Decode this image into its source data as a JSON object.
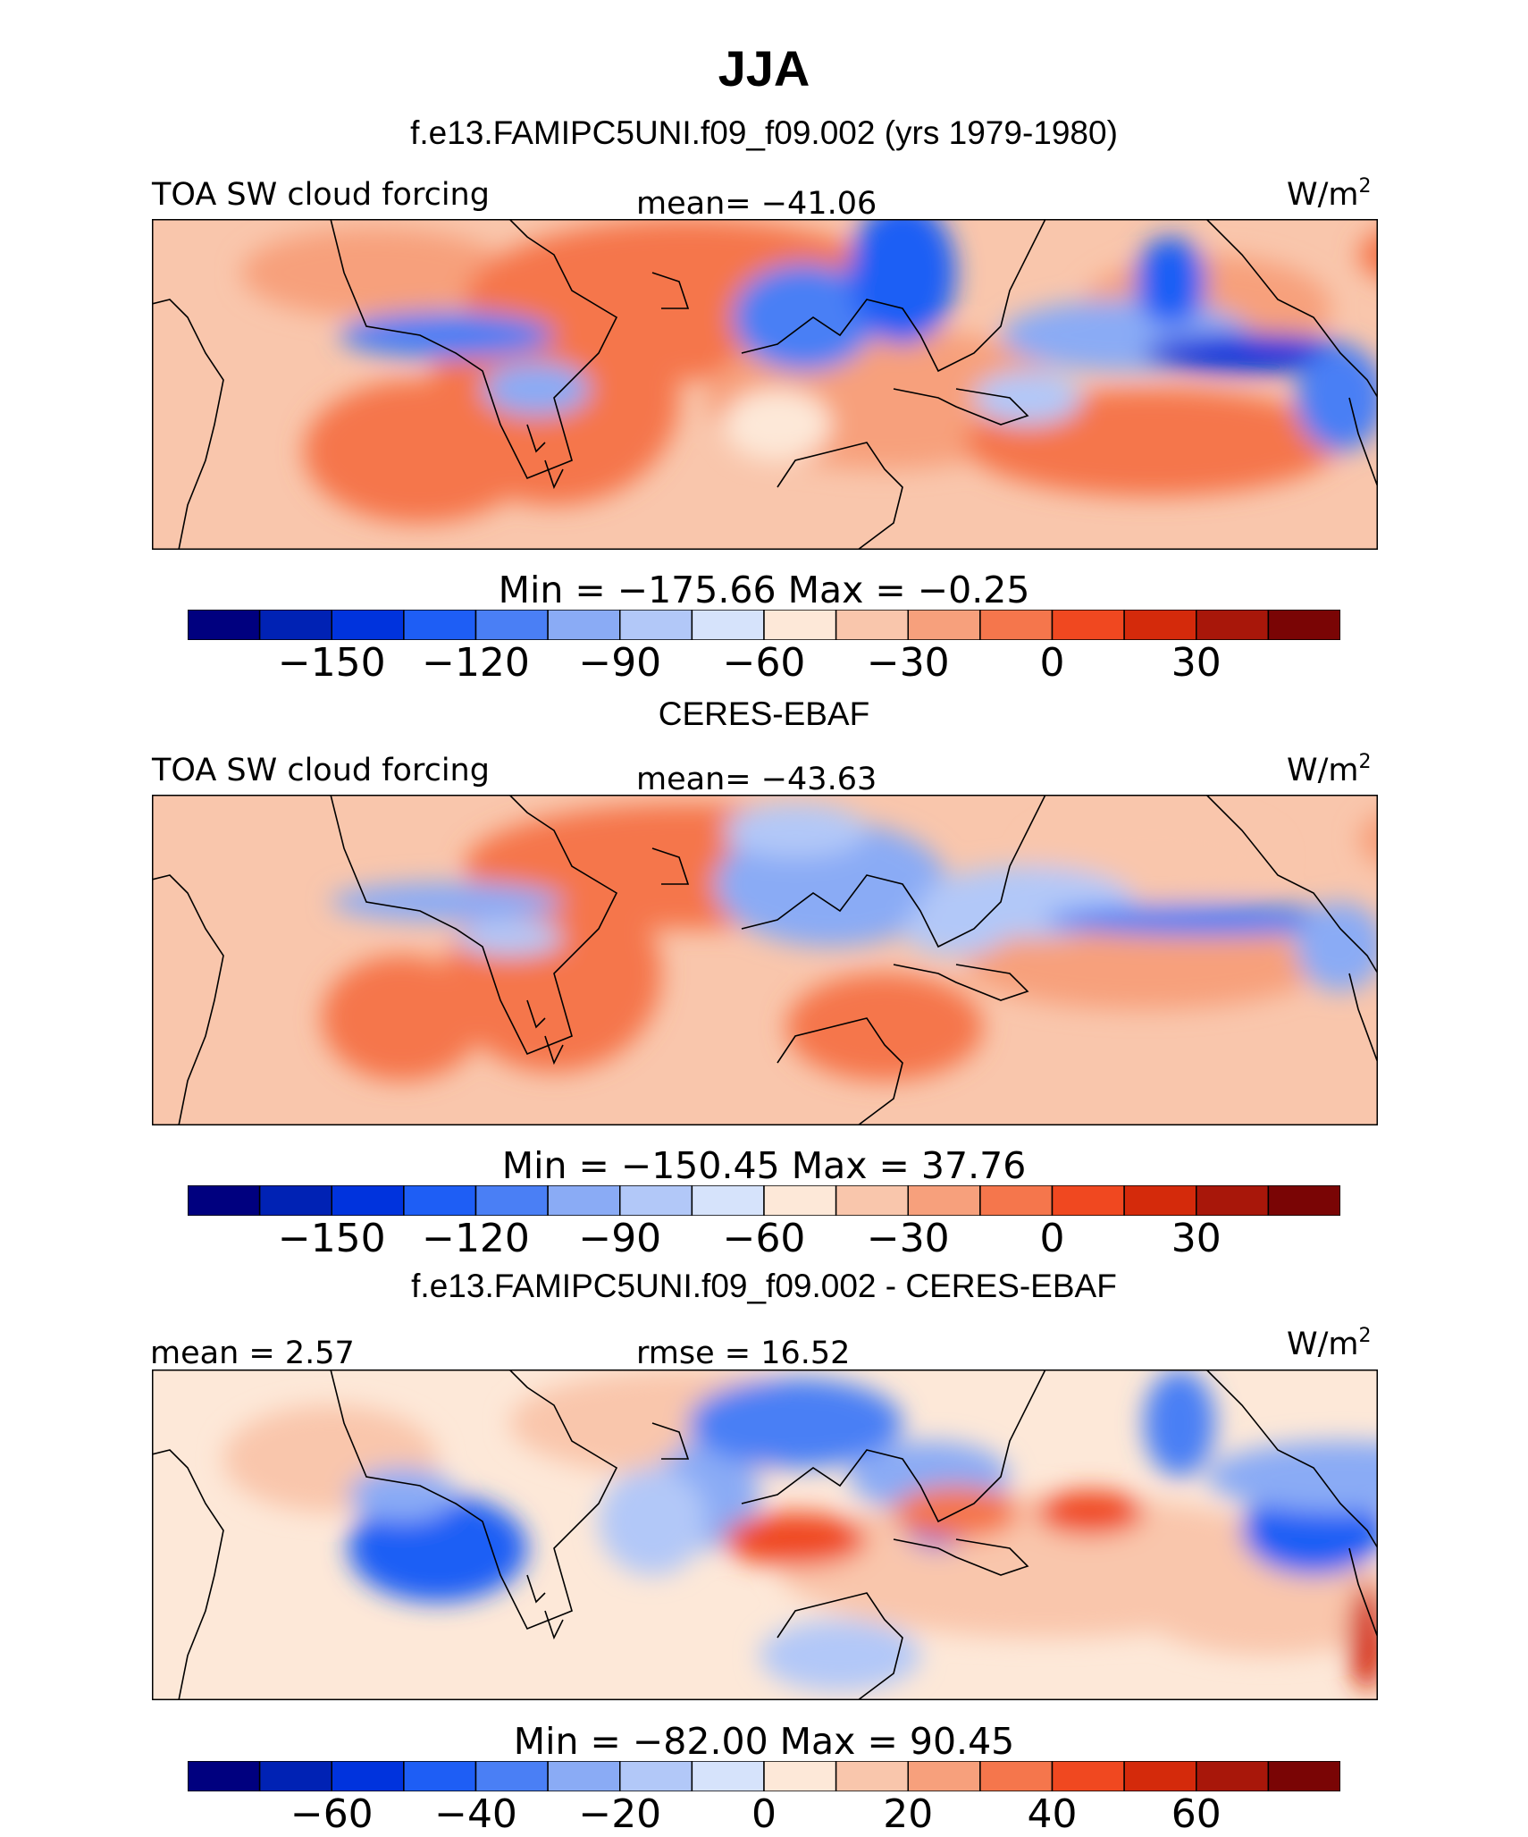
{
  "title": "JJA",
  "colors": {
    "levels": [
      "#00007f",
      "#0022b4",
      "#0033dd",
      "#1e5ef5",
      "#4a7ff5",
      "#8aabf5",
      "#b2c8f8",
      "#d6e3fb",
      "#fde8d8",
      "#f9c6ac",
      "#f7a07c",
      "#f5764c",
      "#f04820",
      "#d42a0b",
      "#a8170a",
      "#7a0505"
    ],
    "coast": "#000000"
  },
  "panels": [
    {
      "title": "f.e13.FAMIPC5UNI.f09_f09.002 (yrs 1979-1980)",
      "left_label": "TOA SW cloud forcing",
      "center_label": "mean= −41.06",
      "units": "W/m",
      "units_sup": "2",
      "cbar_stat": "Min  =  −175.66  Max  =    −0.25",
      "ticks": [
        "−150",
        "−120",
        "−90",
        "−60",
        "−30",
        "0",
        "30"
      ],
      "field": "model"
    },
    {
      "title": "CERES-EBAF",
      "left_label": "TOA SW cloud forcing",
      "center_label": "mean= −43.63",
      "units": "W/m",
      "units_sup": "2",
      "cbar_stat": "Min  =  −150.45  Max  =    37.76",
      "ticks": [
        "−150",
        "−120",
        "−90",
        "−60",
        "−30",
        "0",
        "30"
      ],
      "field": "obs"
    },
    {
      "title": "f.e13.FAMIPC5UNI.f09_f09.002 - CERES-EBAF",
      "left_label": "mean  =    2.57",
      "center_label": "rmse  =   16.52",
      "units": "W/m",
      "units_sup": "2",
      "cbar_stat": "Min  =  −82.00  Max  =   90.45",
      "ticks": [
        "−60",
        "−40",
        "−20",
        "0",
        "20",
        "40",
        "60"
      ],
      "field": "diff"
    }
  ]
}
